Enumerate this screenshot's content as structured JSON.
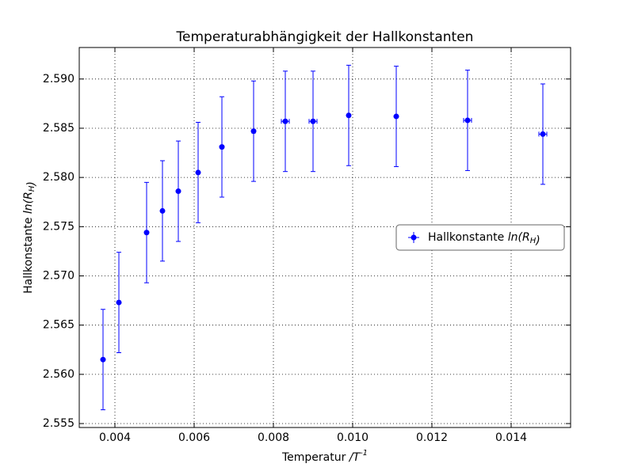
{
  "chart_data": {
    "type": "errorbar",
    "title": "Temperaturabhängigkeit der Hallkonstanten",
    "xlabel": "Temperatur /T^-1",
    "ylabel": "Hallkonstante ln(R_H)",
    "x": [
      0.0037,
      0.0041,
      0.0048,
      0.0052,
      0.0056,
      0.0061,
      0.0067,
      0.0075,
      0.0083,
      0.009,
      0.0099,
      0.0111,
      0.0129,
      0.0148
    ],
    "series": [
      {
        "name": "Hallkonstante ln(R_H)",
        "color": "#0000ff",
        "values": [
          2.5615,
          2.5673,
          2.5744,
          2.5766,
          2.5786,
          2.5805,
          2.5831,
          2.5847,
          2.5857,
          2.5857,
          2.5863,
          2.5862,
          2.5858,
          2.5844
        ],
        "yerr": [
          0.0051,
          0.0051,
          0.0051,
          0.0051,
          0.0051,
          0.0051,
          0.0051,
          0.0051,
          0.0051,
          0.0051,
          0.0051,
          0.0051,
          0.0051,
          0.0051
        ],
        "xerr": [
          2e-05,
          2e-05,
          2e-05,
          2e-05,
          2e-05,
          2e-05,
          3e-05,
          4e-05,
          0.0001,
          0.0001,
          2e-05,
          2e-05,
          0.0001,
          0.0001
        ]
      }
    ],
    "xlim": [
      0.0031,
      0.0155
    ],
    "ylim": [
      2.5546,
      2.5932
    ],
    "xticks": [
      0.004,
      0.006,
      0.008,
      {
        "value": 0.01,
        "label": "0.010"
      },
      0.012,
      0.014
    ],
    "yticks": [
      2.555,
      {
        "value": 2.56,
        "label": "2.560"
      },
      2.565,
      {
        "value": 2.57,
        "label": "2.570"
      },
      2.575,
      {
        "value": 2.58,
        "label": "2.580"
      },
      2.585,
      {
        "value": 2.59,
        "label": "2.590"
      }
    ],
    "grid": true,
    "legend": "center right"
  }
}
